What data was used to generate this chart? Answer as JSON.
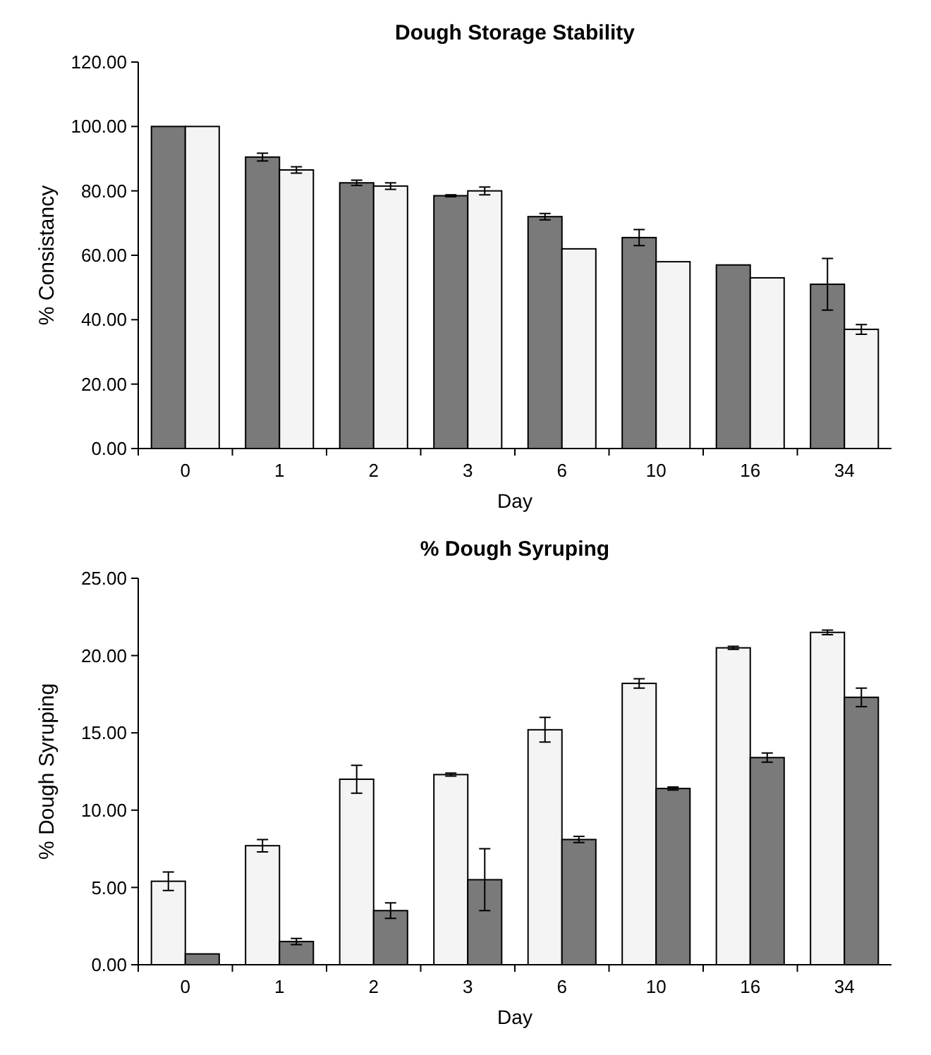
{
  "chart_data": [
    {
      "type": "bar",
      "title": "Dough Storage Stability",
      "xlabel": "Day",
      "ylabel": "% Consistancy",
      "categories": [
        "0",
        "1",
        "2",
        "3",
        "6",
        "10",
        "16",
        "34"
      ],
      "series": [
        {
          "color": "#7a7a7a",
          "values": [
            100,
            90.5,
            82.5,
            78.5,
            72,
            65.5,
            57,
            51
          ],
          "errors": [
            null,
            1.2,
            0.8,
            0.3,
            1,
            2.5,
            null,
            8
          ]
        },
        {
          "color": "#f4f4f4",
          "values": [
            100,
            86.5,
            81.5,
            80,
            62,
            58,
            53,
            37
          ],
          "errors": [
            null,
            1,
            1,
            1.2,
            null,
            null,
            null,
            1.5
          ]
        }
      ],
      "ylim": [
        0,
        120
      ],
      "yticks": [
        {
          "value": 0,
          "label": "0.00"
        },
        {
          "value": 20,
          "label": "20.00"
        },
        {
          "value": 40,
          "label": "40.00"
        },
        {
          "value": 60,
          "label": "60.00"
        },
        {
          "value": 80,
          "label": "80.00"
        },
        {
          "value": 100,
          "label": "100.00"
        },
        {
          "value": 120,
          "label": "120.00"
        }
      ]
    },
    {
      "type": "bar",
      "title": "% Dough Syruping",
      "xlabel": "Day",
      "ylabel": "% Dough Syruping",
      "categories": [
        "0",
        "1",
        "2",
        "3",
        "6",
        "10",
        "16",
        "34"
      ],
      "series": [
        {
          "color": "#f4f4f4",
          "values": [
            5.4,
            7.7,
            12,
            12.3,
            15.2,
            18.2,
            20.5,
            21.5
          ],
          "errors": [
            0.6,
            0.4,
            0.9,
            0.1,
            0.8,
            0.3,
            0.1,
            0.15
          ]
        },
        {
          "color": "#7a7a7a",
          "values": [
            0.7,
            1.5,
            3.5,
            5.5,
            8.1,
            11.4,
            13.4,
            17.3
          ],
          "errors": [
            null,
            0.2,
            0.5,
            2,
            0.2,
            0.1,
            0.3,
            0.6
          ]
        }
      ],
      "ylim": [
        0,
        25
      ],
      "yticks": [
        {
          "value": 0,
          "label": "0.00"
        },
        {
          "value": 5,
          "label": "5.00"
        },
        {
          "value": 10,
          "label": "10.00"
        },
        {
          "value": 15,
          "label": "15.00"
        },
        {
          "value": 20,
          "label": "20.00"
        },
        {
          "value": 25,
          "label": "25.00"
        }
      ]
    }
  ]
}
